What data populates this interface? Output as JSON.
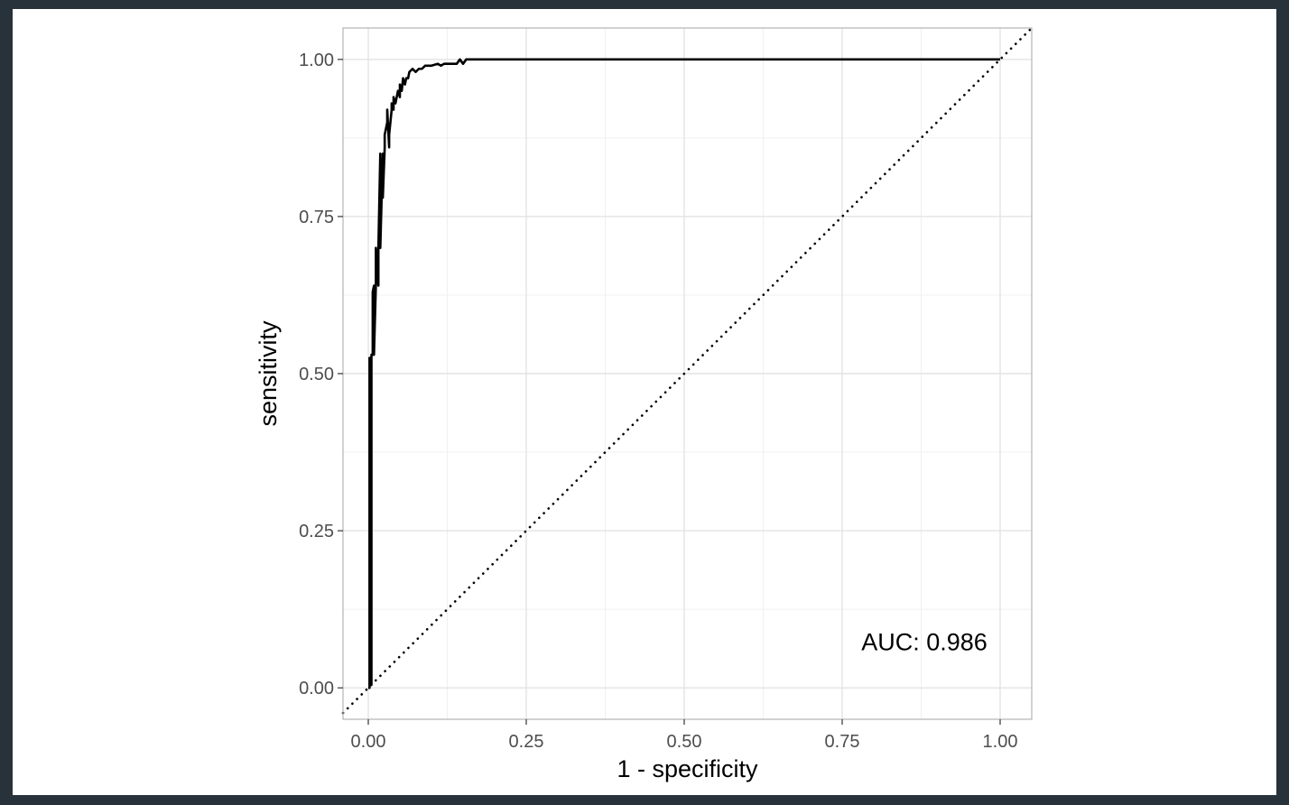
{
  "chart_data": {
    "type": "line",
    "xlabel": "1 - specificity",
    "ylabel": "sensitivity",
    "xlim": [
      -0.04,
      1.05
    ],
    "ylim": [
      -0.05,
      1.05
    ],
    "x_ticks": [
      "0.00",
      "0.25",
      "0.50",
      "0.75",
      "1.00"
    ],
    "y_ticks": [
      "0.00",
      "0.25",
      "0.50",
      "0.75",
      "1.00"
    ],
    "grid": true,
    "annotation": {
      "text": "AUC: 0.986",
      "x": 0.88,
      "y": 0.06
    },
    "reference_line": {
      "style": "dotted",
      "slope": 1,
      "intercept": 0
    },
    "series": [
      {
        "x": [
          0.0,
          0.002,
          0.002,
          0.005,
          0.005,
          0.007,
          0.007,
          0.009,
          0.009,
          0.012,
          0.012,
          0.016,
          0.016,
          0.019,
          0.019,
          0.023,
          0.023,
          0.026,
          0.026,
          0.03,
          0.03,
          0.033,
          0.033,
          0.037,
          0.037,
          0.04,
          0.04,
          0.043,
          0.047,
          0.05,
          0.05,
          0.053,
          0.055,
          0.058,
          0.06,
          0.063,
          0.065,
          0.07,
          0.075,
          0.08,
          0.085,
          0.09,
          0.1,
          0.11,
          0.115,
          0.12,
          0.13,
          0.14,
          0.145,
          0.15,
          0.155,
          0.16,
          0.2,
          0.4,
          0.6,
          0.8,
          1.0
        ],
        "y": [
          0.0,
          0.0,
          0.525,
          0.005,
          0.53,
          0.53,
          0.63,
          0.64,
          0.53,
          0.64,
          0.7,
          0.64,
          0.7,
          0.85,
          0.7,
          0.85,
          0.78,
          0.86,
          0.88,
          0.9,
          0.92,
          0.86,
          0.88,
          0.92,
          0.93,
          0.92,
          0.94,
          0.93,
          0.95,
          0.94,
          0.96,
          0.95,
          0.97,
          0.96,
          0.97,
          0.97,
          0.98,
          0.985,
          0.98,
          0.985,
          0.985,
          0.99,
          0.99,
          0.993,
          0.99,
          0.993,
          0.993,
          0.993,
          1.0,
          0.993,
          1.0,
          1.0,
          1.0,
          1.0,
          1.0,
          1.0,
          1.0
        ]
      }
    ]
  }
}
